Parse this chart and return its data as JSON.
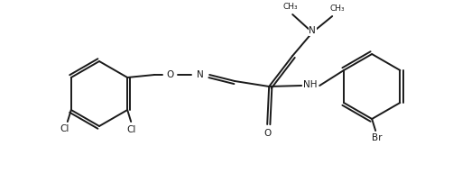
{
  "bg_color": "#ffffff",
  "line_color": "#1a1a1a",
  "line_width": 1.4,
  "font_size": 7.5,
  "fig_width": 5.12,
  "fig_height": 1.92,
  "dpi": 100,
  "xlim": [
    0,
    5.12
  ],
  "ylim": [
    0,
    1.92
  ]
}
